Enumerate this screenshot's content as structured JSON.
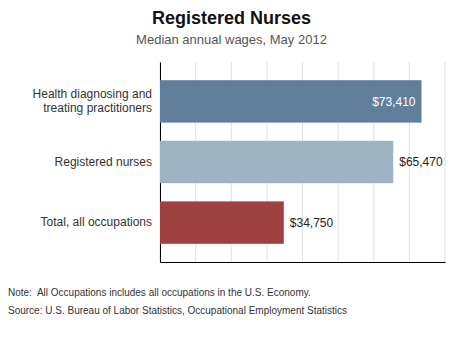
{
  "chart_data": {
    "type": "bar",
    "orientation": "horizontal",
    "title": "Registered Nurses",
    "subtitle": "Median annual wages, May 2012",
    "annotations": [
      "Note:  All Occupations includes all occupations in the U.S. Economy.",
      "Source: U.S. Bureau of Labor Statistics, Occupational Employment Statistics"
    ],
    "categories": [
      "Health diagnosing and\ntreating practitioners",
      "Registered nurses",
      "Total, all occupations"
    ],
    "values": [
      73410,
      65470,
      34750
    ],
    "value_labels": [
      "$73,410",
      "$65,470",
      "$34,750"
    ],
    "colors": [
      "#5f7f9b",
      "#9eb3c2",
      "#a04040"
    ],
    "xlim": [
      0,
      80000
    ],
    "xticks": [
      0,
      10000,
      20000,
      30000,
      40000,
      50000,
      60000,
      70000,
      80000
    ],
    "grid": true,
    "data_labels": true,
    "tick_labels": "y"
  }
}
